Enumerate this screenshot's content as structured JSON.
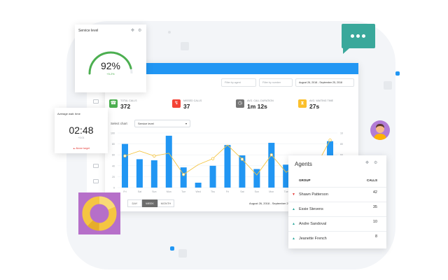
{
  "colors": {
    "accent": "#2196f3",
    "bar": "#2196f3",
    "line": "#f5c542",
    "gauge": "#4caf50",
    "chat": "#3aa89b",
    "pie_bg": "#b66fc9",
    "pie": "#f5c542"
  },
  "service_level": {
    "title": "Service level",
    "value": "92%",
    "sub": "+5.2%",
    "fraction": 0.92,
    "icons": [
      "move-icon",
      "settings-icon"
    ]
  },
  "avg_wait": {
    "title": "Average wait. time",
    "value": "02:48",
    "sub": "+0.01",
    "warning": "Above target"
  },
  "dashboard": {
    "filters": [
      {
        "label": "Filter by agent",
        "dark": false
      },
      {
        "label": "Filter by number",
        "dark": false
      },
      {
        "label": "August 26, 2018 - September 25, 2018",
        "dark": true
      }
    ],
    "stats": [
      {
        "label": "TOTAL CALLS",
        "value": "372",
        "color": "#4caf50",
        "icon": "phone-icon"
      },
      {
        "label": "MISSED CALLS",
        "value": "37",
        "color": "#f44336",
        "icon": "missed-call-icon"
      },
      {
        "label": "AVG. CALL DURATION",
        "value": "1m 12s",
        "color": "#757575",
        "icon": "clock-icon"
      },
      {
        "label": "AVG. WAITING TIME",
        "value": "27s",
        "color": "#fbc02d",
        "icon": "hourglass-icon"
      }
    ],
    "select_label": "Select chart",
    "select_value": "Service level",
    "periods": [
      "DAY",
      "WEEK",
      "MONTH"
    ],
    "active_period": "WEEK",
    "range": "August 26, 2018 - September 25, 2018"
  },
  "chart_data": {
    "type": "bar",
    "categories": [
      "Fri",
      "Sat",
      "Sun",
      "Mon",
      "Tue",
      "Wed",
      "Thu",
      "Fri",
      "Sat",
      "Sun",
      "Mon",
      "Tue",
      "Wed",
      "Thu",
      "Fri"
    ],
    "series": [
      {
        "values": [
          80,
          52,
          50,
          95,
          37,
          9,
          40,
          78,
          59,
          34,
          82,
          42,
          38,
          52,
          85
        ]
      },
      {
        "values": [
          58,
          67,
          58,
          63,
          24,
          42,
          53,
          78,
          52,
          23,
          60,
          28,
          45,
          37,
          87
        ]
      }
    ],
    "yticks": [
      "100",
      "80",
      "60",
      "40",
      "20",
      "0"
    ],
    "ylim": [
      0,
      100
    ],
    "grid": true
  },
  "agents": {
    "title": "Agents",
    "col_group": "GROUP",
    "col_calls": "CALLS",
    "rows": [
      {
        "name": "Shawn Patterson",
        "calls": "42",
        "trend": "down"
      },
      {
        "name": "Essie Stevens",
        "calls": "35",
        "trend": "up"
      },
      {
        "name": "Andre Sandoval",
        "calls": "10",
        "trend": "up"
      },
      {
        "name": "Jeanette French",
        "calls": "8",
        "trend": "up"
      }
    ]
  },
  "chat_icon": "chat-bubble-icon",
  "avatar_icon": "user-avatar-icon",
  "pie_icon": "donut-chart-icon"
}
